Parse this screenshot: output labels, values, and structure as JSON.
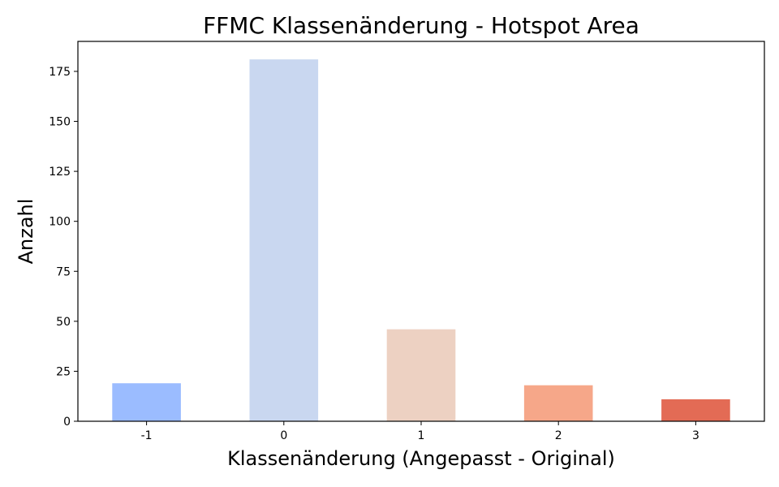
{
  "chart_data": {
    "type": "bar",
    "title": "FFMC Klassenänderung - Hotspot Area",
    "xlabel": "Klassenänderung (Angepasst - Original)",
    "ylabel": "Anzahl",
    "categories": [
      "-1",
      "0",
      "1",
      "2",
      "3"
    ],
    "values": [
      19,
      181,
      46,
      18,
      11
    ],
    "colors": [
      "#9bbcff",
      "#c9d7f0",
      "#edd1c2",
      "#f6a789",
      "#e36b55"
    ],
    "ylim": [
      0,
      190
    ],
    "yticks": [
      0,
      25,
      50,
      75,
      100,
      125,
      150,
      175
    ],
    "grid": false,
    "legend": "none"
  }
}
